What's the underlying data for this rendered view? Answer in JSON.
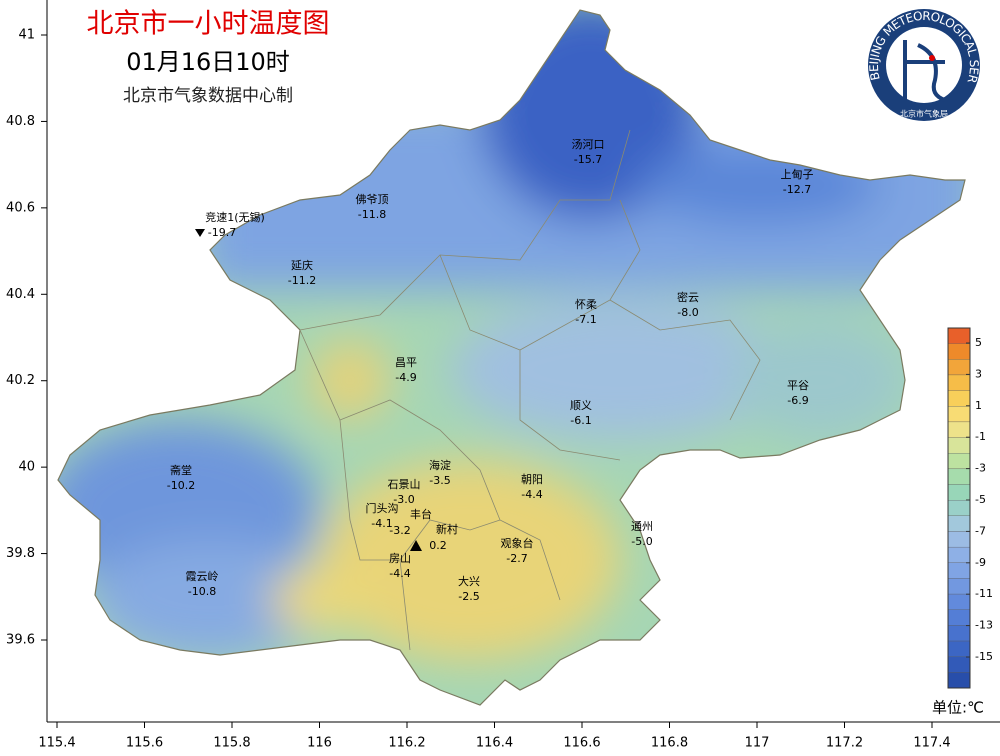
{
  "header": {
    "title": "北京市一小时温度图",
    "time": "01月16日10时",
    "source": "北京市气象数据中心制"
  },
  "logo": {
    "text_en": "BEIJING METEOROLOGICAL SERVICE",
    "text_cn": "北京市气象局"
  },
  "axes": {
    "xticks": [
      115.4,
      115.6,
      115.8,
      116,
      116.2,
      116.4,
      116.6,
      116.8,
      117,
      117.2,
      117.4
    ],
    "yticks": [
      41,
      40.8,
      40.6,
      40.4,
      40.2,
      40,
      39.8,
      39.6
    ]
  },
  "stations": [
    {
      "name": "汤河口",
      "value": "-15.7"
    },
    {
      "name": "上甸子",
      "value": "-12.7"
    },
    {
      "name": "佛爷顶",
      "value": "-11.8"
    },
    {
      "name": "竞速1(无锡)",
      "value": "-19.7",
      "marker": "down"
    },
    {
      "name": "延庆",
      "value": "-11.2"
    },
    {
      "name": "怀柔",
      "value": "-7.1"
    },
    {
      "name": "密云",
      "value": "-8.0"
    },
    {
      "name": "昌平",
      "value": "-4.9"
    },
    {
      "name": "平谷",
      "value": "-6.9"
    },
    {
      "name": "顺义",
      "value": "-6.1"
    },
    {
      "name": "海淀",
      "value": "-3.5"
    },
    {
      "name": "朝阳",
      "value": "-4.4"
    },
    {
      "name": "石景山",
      "value": "-3.0"
    },
    {
      "name": "门头沟",
      "value": "-4.1"
    },
    {
      "name": "丰台",
      "value": "-3.2"
    },
    {
      "name": "新村",
      "value": "0.2",
      "marker": "up"
    },
    {
      "name": "通州",
      "value": "-5.0"
    },
    {
      "name": "观象台",
      "value": "-2.7"
    },
    {
      "name": "房山",
      "value": "-4.4"
    },
    {
      "name": "大兴",
      "value": "-2.5"
    },
    {
      "name": "霞云岭",
      "value": "-10.8"
    },
    {
      "name": "斋堂",
      "value": "-10.2"
    }
  ],
  "legend": {
    "labels": [
      5,
      3,
      1,
      -1,
      -3,
      -5,
      -7,
      -9,
      -11,
      -13,
      -15
    ],
    "colors": [
      "#e8602a",
      "#ee8a2a",
      "#f2a53a",
      "#f6bd48",
      "#f8cf5a",
      "#f8dc74",
      "#eee28a",
      "#d8e49a",
      "#bde2a0",
      "#a6dcac",
      "#98d6b8",
      "#9ad0c8",
      "#a2c8dc",
      "#9cbce4",
      "#8eb0e6",
      "#80a4e4",
      "#7298e0",
      "#628adc",
      "#547ed6",
      "#4872ce",
      "#3c66c4",
      "#325ab8",
      "#284eaa"
    ],
    "unit": "单位:℃"
  }
}
